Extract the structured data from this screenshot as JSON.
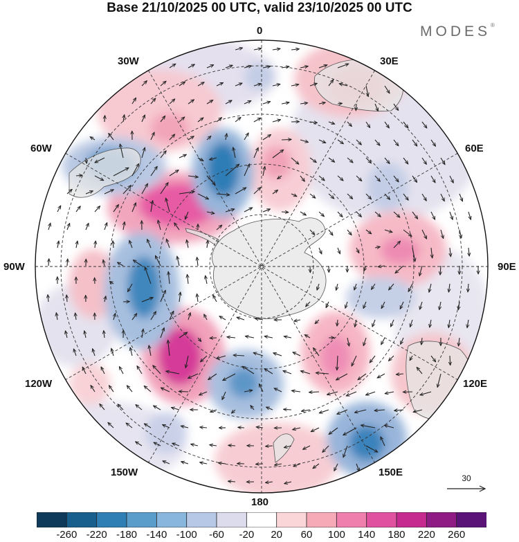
{
  "title": "Base 21/10/2025 00 UTC, valid 23/10/2025 00 UTC",
  "brand": "MODES",
  "brand_mark": "®",
  "longitude_labels": {
    "lon_0": "0",
    "lon_30e": "30E",
    "lon_60e": "60E",
    "lon_90e": "90E",
    "lon_120e": "120E",
    "lon_150e": "150E",
    "lon_180": "180",
    "lon_150w": "150W",
    "lon_120w": "120W",
    "lon_90w": "90W",
    "lon_60w": "60W",
    "lon_30w": "30W"
  },
  "reference_vector": {
    "value": "30"
  },
  "colorbar": {
    "colors": [
      "#0f3a5a",
      "#195f8e",
      "#2f7fb5",
      "#5a9dcb",
      "#88b6dd",
      "#b7c7e6",
      "#dcdced",
      "#ffffff",
      "#fad6d8",
      "#f6aab8",
      "#ef7fad",
      "#e0529f",
      "#c62a8e",
      "#8f1b84",
      "#5a1478"
    ],
    "labels": [
      "-260",
      "-220",
      "-180",
      "-140",
      "-100",
      "-60",
      "-20",
      "20",
      "60",
      "100",
      "140",
      "180",
      "220",
      "260"
    ]
  },
  "colors": {
    "land": "#e6e6e6",
    "grid": "#333333",
    "wind": "#222222"
  }
}
